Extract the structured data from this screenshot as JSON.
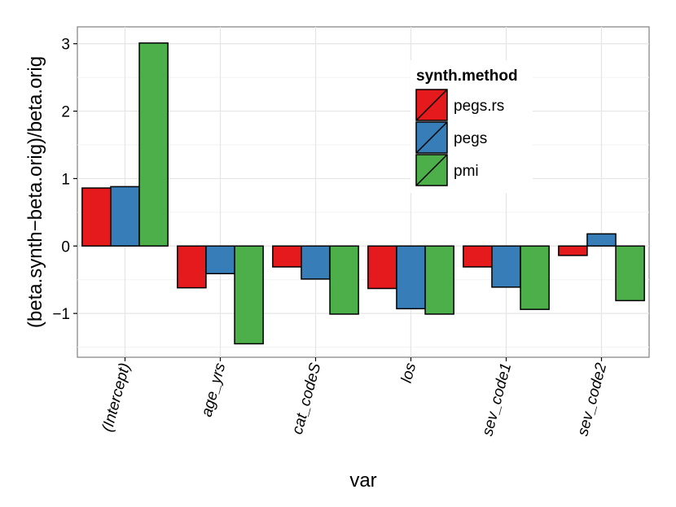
{
  "chart_data": {
    "type": "bar",
    "title": "",
    "xlabel": "var",
    "ylabel": "(beta.synth−beta.orig)/beta.orig",
    "categories": [
      "(Intercept)",
      "age_yrs",
      "cat_codeS",
      "los",
      "sev_code1",
      "sev_code2"
    ],
    "series": [
      {
        "name": "pegs.rs",
        "color": "#e41a1c",
        "values": [
          0.86,
          -0.62,
          -0.31,
          -0.63,
          -0.31,
          -0.14
        ]
      },
      {
        "name": "pegs",
        "color": "#377eb8",
        "values": [
          0.88,
          -0.41,
          -0.49,
          -0.93,
          -0.61,
          0.18
        ]
      },
      {
        "name": "pmi",
        "color": "#4daf4a",
        "values": [
          3.01,
          -1.45,
          -1.01,
          -1.01,
          -0.94,
          -0.81
        ]
      }
    ],
    "ylim": [
      -1.65,
      3.25
    ],
    "yticks": [
      -1,
      0,
      1,
      2,
      3
    ],
    "ytick_labels": [
      "−1",
      "0",
      "1",
      "2",
      "3"
    ],
    "grid": true,
    "legend": {
      "title": "synth.method",
      "position": "top-right, inside plot"
    }
  }
}
